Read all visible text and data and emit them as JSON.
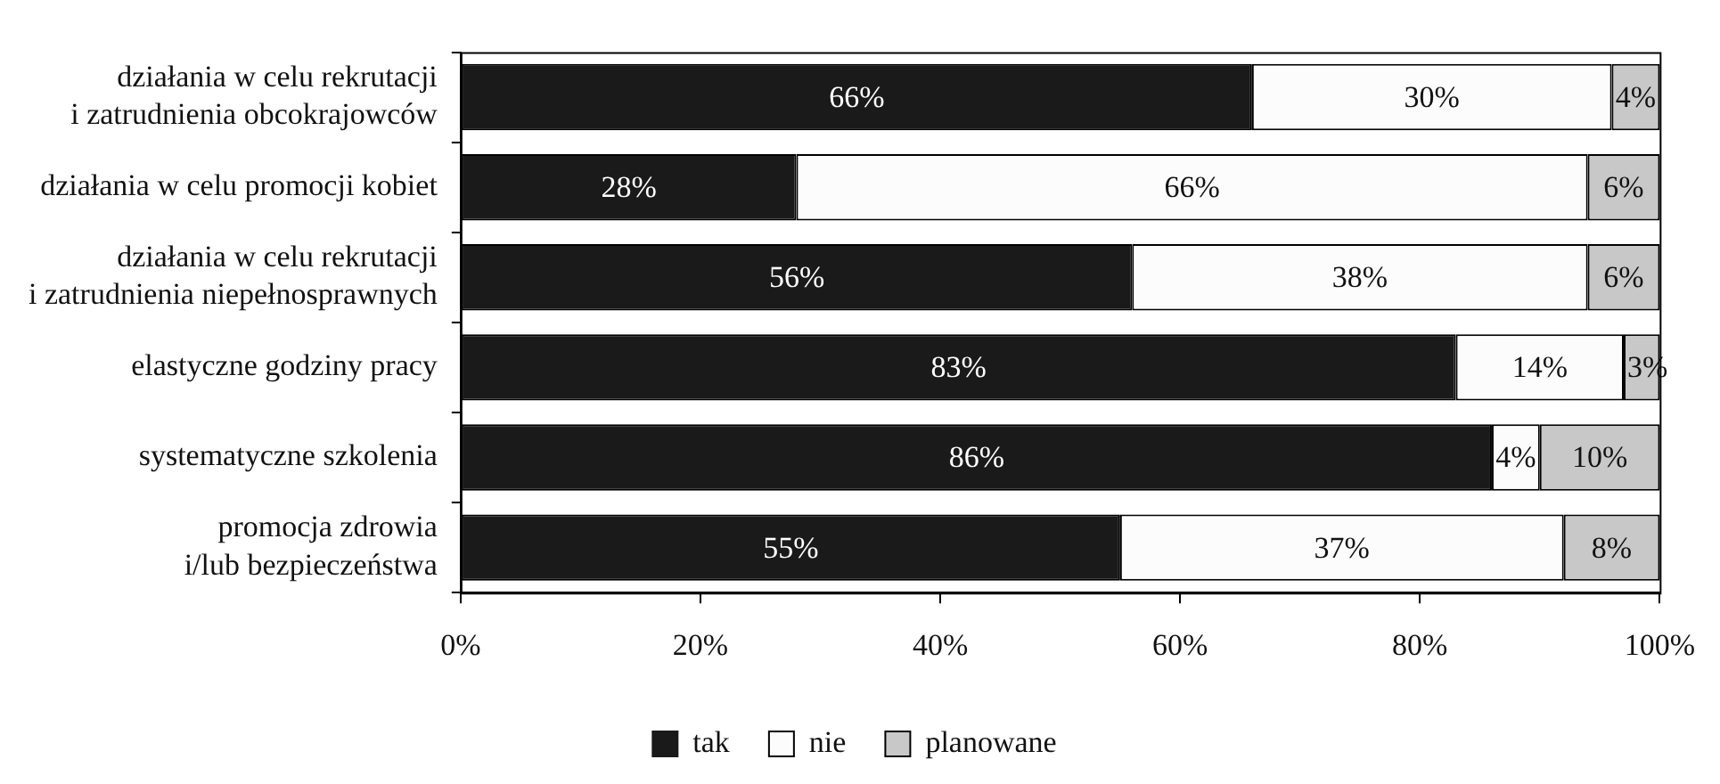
{
  "chart_data": {
    "type": "bar",
    "orientation": "horizontal",
    "stacked": true,
    "categories": [
      "działania w celu rekrutacji\ni zatrudnienia obcokrajowców",
      "działania w celu promocji kobiet",
      "działania w celu rekrutacji\ni zatrudnienia niepełnosprawnych",
      "elastyczne godziny pracy",
      "systematyczne szkolenia",
      "promocja zdrowia\ni/lub bezpieczeństwa"
    ],
    "series": [
      {
        "name": "tak",
        "color": "#1a1a1a",
        "values": [
          66,
          28,
          56,
          83,
          86,
          55
        ],
        "value_labels": [
          "66%",
          "28%",
          "56%",
          "83%",
          "86%",
          "55%"
        ]
      },
      {
        "name": "nie",
        "color": "#fcfcfc",
        "values": [
          30,
          66,
          38,
          14,
          4,
          37
        ],
        "value_labels": [
          "30%",
          "66%",
          "38%",
          "14%",
          "4%",
          "37%"
        ]
      },
      {
        "name": "planowane",
        "color": "#c8c8c8",
        "values": [
          4,
          6,
          6,
          3,
          10,
          8
        ],
        "value_labels": [
          "4%",
          "6%",
          "6%",
          "3%",
          "10%",
          "8%"
        ]
      }
    ],
    "xlim": [
      0,
      100
    ],
    "xticks": [
      {
        "value": 0,
        "label": "0%"
      },
      {
        "value": 20,
        "label": "20%"
      },
      {
        "value": 40,
        "label": "40%"
      },
      {
        "value": 60,
        "label": "60%"
      },
      {
        "value": 80,
        "label": "80%"
      },
      {
        "value": 100,
        "label": "100%"
      }
    ],
    "grid": false,
    "legend": "bottom"
  }
}
